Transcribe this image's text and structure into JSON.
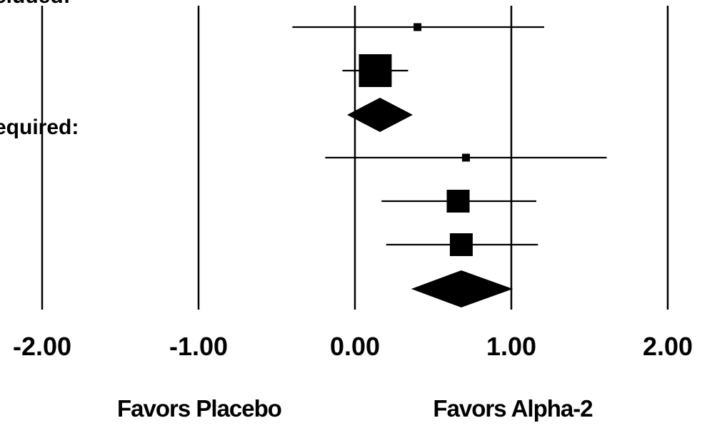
{
  "chart_data": {
    "type": "forest",
    "xlim": [
      -2.0,
      2.0
    ],
    "x_ticks": [
      {
        "value": -2.0,
        "label": "-2.00"
      },
      {
        "value": -1.0,
        "label": "-1.00"
      },
      {
        "value": 0.0,
        "label": "0.00"
      },
      {
        "value": 1.0,
        "label": "1.00"
      },
      {
        "value": 2.0,
        "label": "2.00"
      }
    ],
    "group_labels": [
      "cluded:",
      "equired:"
    ],
    "studies": [
      {
        "estimate": 0.4,
        "lower": -0.4,
        "upper": 1.21,
        "weight": "small"
      },
      {
        "estimate": 0.13,
        "lower": -0.08,
        "upper": 0.34,
        "weight": "large"
      },
      {
        "estimate": 0.71,
        "lower": -0.19,
        "upper": 1.61,
        "weight": "small"
      },
      {
        "estimate": 0.66,
        "lower": 0.17,
        "upper": 1.16,
        "weight": "medium"
      },
      {
        "estimate": 0.68,
        "lower": 0.2,
        "upper": 1.17,
        "weight": "medium"
      }
    ],
    "pooled": [
      {
        "estimate": 0.16,
        "lower": -0.05,
        "upper": 0.37
      },
      {
        "estimate": 0.68,
        "lower": 0.36,
        "upper": 1.01
      }
    ],
    "favors_left": "Favors Placebo",
    "favors_right": "Favors Alpha-2",
    "grid": "vertical lines at ticks"
  }
}
